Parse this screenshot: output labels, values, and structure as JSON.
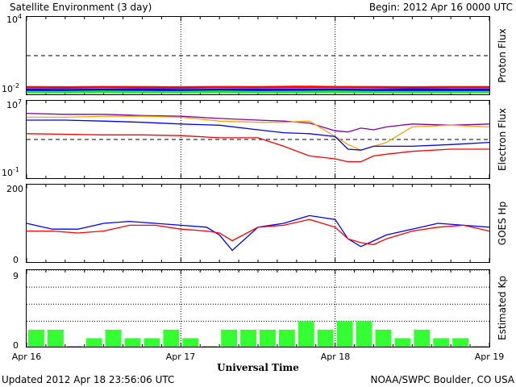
{
  "header": {
    "title": "Satellite Environment (3 day)",
    "begin": "Begin:  2012 Apr 16 0000 UTC"
  },
  "footer": {
    "updated": "Updated 2012 Apr 18 23:56:06 UTC",
    "credit": "NOAA/SWPC Boulder, CO USA"
  },
  "xaxis": {
    "label": "Universal Time",
    "ticks": [
      "Apr 16",
      "Apr 17",
      "Apr 18",
      "Apr 19"
    ]
  },
  "colors": {
    "red": "#ff0000",
    "blue": "#0000ff",
    "green": "#00ff00",
    "purple": "#7f00a0",
    "orange": "#ffa500",
    "kp_bar": "#33ff33"
  },
  "chart_data": [
    {
      "type": "line",
      "ylabel": "Proton Flux",
      "yscale": "log",
      "ylim": [
        0.01,
        10000
      ],
      "ytick_labels": [
        {
          "base": "10",
          "exp": "4"
        },
        {
          "base": "10",
          "exp": "-2"
        }
      ],
      "threshold": 10,
      "x": [
        0,
        6,
        12,
        18,
        24,
        30,
        36,
        42,
        48,
        54,
        60,
        66,
        72
      ],
      "series": [
        {
          "color": "red",
          "values": [
            0.035,
            0.034,
            0.036,
            0.035,
            0.034,
            0.036,
            0.035,
            0.038,
            0.036,
            0.035,
            0.034,
            0.035,
            0.035
          ]
        },
        {
          "color": "blue",
          "values": [
            0.022,
            0.021,
            0.022,
            0.023,
            0.021,
            0.022,
            0.022,
            0.023,
            0.022,
            0.021,
            0.022,
            0.022,
            0.022
          ]
        },
        {
          "color": "green",
          "values": [
            0.015,
            0.015,
            0.016,
            0.015,
            0.015,
            0.016,
            0.015,
            0.015,
            0.016,
            0.015,
            0.015,
            0.015,
            0.015
          ]
        }
      ]
    },
    {
      "type": "line",
      "ylabel": "Electron Flux",
      "yscale": "log",
      "ylim": [
        0.1,
        10000000
      ],
      "ytick_labels": [
        {
          "base": "10",
          "exp": "7"
        },
        {
          "base": "10",
          "exp": "-1"
        }
      ],
      "threshold": 1000,
      "x": [
        0,
        6,
        12,
        18,
        24,
        30,
        36,
        40,
        44,
        48,
        50,
        52,
        54,
        56,
        60,
        66,
        72
      ],
      "series": [
        {
          "color": "purple",
          "values": [
            500000,
            400000,
            400000,
            300000,
            250000,
            150000,
            100000,
            80000,
            50000,
            8000,
            6000,
            15000,
            10000,
            20000,
            40000,
            30000,
            40000
          ]
        },
        {
          "color": "orange",
          "values": [
            200000,
            200000,
            250000,
            250000,
            200000,
            80000,
            60000,
            60000,
            80000,
            2000,
            300,
            80,
            200,
            500,
            20000,
            30000,
            20000
          ]
        },
        {
          "color": "blue",
          "values": [
            100000,
            100000,
            80000,
            60000,
            40000,
            30000,
            10000,
            5000,
            4000,
            2000,
            100,
            80,
            200,
            200,
            200,
            300,
            500
          ]
        },
        {
          "color": "red",
          "values": [
            4000,
            3500,
            3000,
            3000,
            2500,
            1500,
            1500,
            200,
            20,
            10,
            5,
            5,
            20,
            30,
            60,
            100,
            100
          ]
        }
      ]
    },
    {
      "type": "line",
      "ylabel": "GOES Hp",
      "ylim": [
        0,
        200
      ],
      "ytick_labels": [
        "200",
        "0"
      ],
      "x": [
        0,
        4,
        8,
        12,
        16,
        20,
        24,
        28,
        30,
        32,
        36,
        40,
        44,
        48,
        50,
        52,
        54,
        56,
        60,
        64,
        68,
        72
      ],
      "series": [
        {
          "color": "blue",
          "values": [
            100,
            85,
            85,
            100,
            105,
            100,
            95,
            90,
            70,
            30,
            90,
            100,
            120,
            110,
            60,
            40,
            55,
            70,
            85,
            100,
            95,
            90
          ]
        },
        {
          "color": "red",
          "values": [
            80,
            80,
            75,
            80,
            95,
            95,
            85,
            80,
            75,
            55,
            90,
            95,
            110,
            90,
            60,
            50,
            45,
            60,
            80,
            90,
            95,
            80
          ]
        }
      ]
    },
    {
      "type": "bar",
      "ylabel": "Estimated Kp",
      "ylim": [
        0,
        9
      ],
      "ytick_labels": [
        "9",
        "0"
      ],
      "values": [
        2,
        2,
        0,
        1,
        2,
        1,
        1,
        2,
        1,
        0,
        2,
        2,
        2,
        2,
        3,
        2,
        3,
        3,
        2,
        1,
        2,
        1,
        1,
        0
      ]
    }
  ]
}
